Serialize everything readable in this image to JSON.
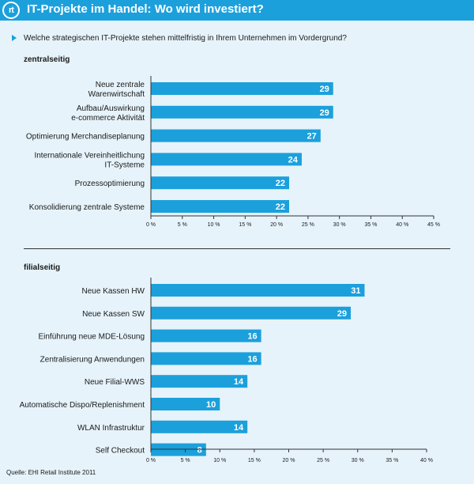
{
  "header": {
    "logo_text": "rt",
    "title": "IT-Projekte im Handel: Wo wird investiert?"
  },
  "question": "Welche strategischen IT-Projekte stehen mittelfristig in Ihrem Unternehmen im Vordergrund?",
  "source": "Quelle: EHI Retail Institute 2011",
  "colors": {
    "bar": "#1ba0dc",
    "header": "#1ba0dc",
    "background": "#e6f3fa"
  },
  "chart_data": [
    {
      "type": "bar",
      "orientation": "horizontal",
      "title": "zentralseitig",
      "categories": [
        [
          "Neue zentrale",
          "Warenwirtschaft"
        ],
        [
          "Aufbau/Auswirkung",
          "e-commerce Aktivität"
        ],
        [
          "Optimierung Merchandiseplanung"
        ],
        [
          "Internationale Vereinheitlichung",
          "IT-Systeme"
        ],
        [
          "Prozessoptimierung"
        ],
        [
          "Konsolidierung zentrale Systeme"
        ]
      ],
      "values": [
        29,
        29,
        27,
        24,
        22,
        22
      ],
      "xlim": [
        0,
        45
      ],
      "ticks": [
        0,
        5,
        10,
        15,
        20,
        25,
        30,
        35,
        40,
        45
      ],
      "tick_labels": [
        "0 %",
        "5 %",
        "10 %",
        "15 %",
        "20 %",
        "25 %",
        "30 %",
        "35 %",
        "40 %",
        "45 %"
      ],
      "grid": false,
      "data_labels": true
    },
    {
      "type": "bar",
      "orientation": "horizontal",
      "title": "filialseitig",
      "categories": [
        [
          "Neue Kassen HW"
        ],
        [
          "Neue Kassen SW"
        ],
        [
          "Einführung neue MDE-Lösung"
        ],
        [
          "Zentralisierung Anwendungen"
        ],
        [
          "Neue Filial-WWS"
        ],
        [
          "Automatische Dispo/Replenishment"
        ],
        [
          "WLAN Infrastruktur"
        ],
        [
          "Self Checkout"
        ]
      ],
      "values": [
        31,
        29,
        16,
        16,
        14,
        10,
        14,
        8
      ],
      "xlim": [
        0,
        40
      ],
      "ticks": [
        0,
        5,
        10,
        15,
        20,
        25,
        30,
        35,
        40
      ],
      "tick_labels": [
        "0 %",
        "5 %",
        "10 %",
        "15 %",
        "20 %",
        "25 %",
        "30 %",
        "35 %",
        "40 %"
      ],
      "grid": false,
      "data_labels": true
    }
  ]
}
